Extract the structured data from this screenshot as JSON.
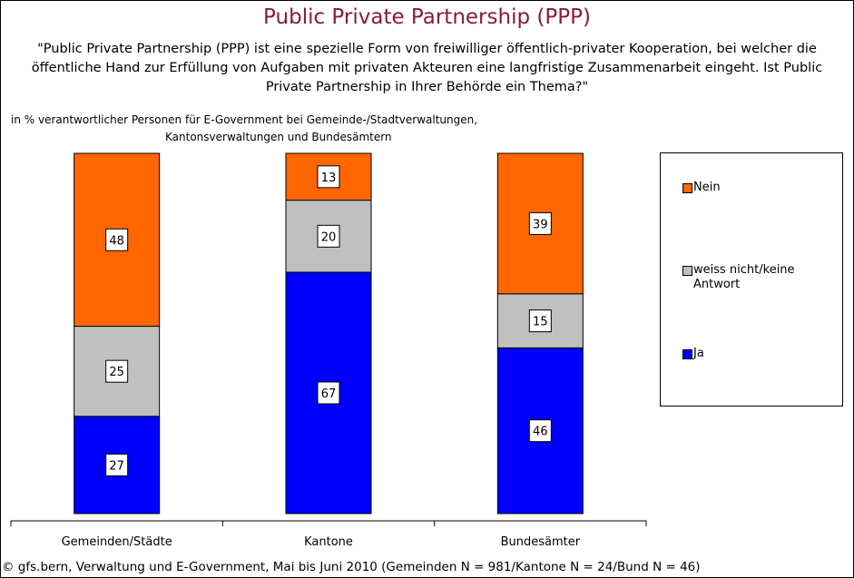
{
  "title": "Public Private Partnership (PPP)",
  "question": "\"Public Private Partnership (PPP) ist eine spezielle Form von freiwilliger öffentlich-privater Kooperation, bei welcher die öffentliche Hand zur Erfüllung von Aufgaben mit privaten Akteuren eine langfristige Zusammenarbeit eingeht. Ist Public Private Partnership in Ihrer Behörde ein Thema?\"",
  "subtitle_line1": "in % verantwortlicher Personen für E-Government bei Gemeinde-/Stadtverwaltungen,",
  "subtitle_line2": "Kantonsverwaltungen und Bundesämtern",
  "footer": "© gfs.bern, Verwaltung und E-Government, Mai bis Juni 2010 (Gemeinden N = 981/Kantone N = 24/Bund N = 46)",
  "colors": {
    "nein": "#FF6600",
    "weiss_nicht": "#C0C0C0",
    "ja": "#0000FF",
    "title": "#8B1A3A"
  },
  "chart_data": {
    "type": "bar",
    "stacked": true,
    "categories": [
      "Gemeinden/Städte",
      "Kantone",
      "Bundesämter"
    ],
    "ylim": [
      0,
      100
    ],
    "series": [
      {
        "name": "Ja",
        "color": "#0000FF",
        "values": [
          27,
          67,
          46
        ]
      },
      {
        "name": "weiss nicht/keine Antwort",
        "color": "#C0C0C0",
        "values": [
          25,
          20,
          15
        ]
      },
      {
        "name": "Nein",
        "color": "#FF6600",
        "values": [
          48,
          13,
          39
        ]
      }
    ],
    "legend": [
      {
        "label": "Nein",
        "color": "#FF6600"
      },
      {
        "label": "weiss nicht/keine Antwort",
        "color": "#C0C0C0"
      },
      {
        "label": "Ja",
        "color": "#0000FF"
      }
    ],
    "legend_position": "right"
  }
}
